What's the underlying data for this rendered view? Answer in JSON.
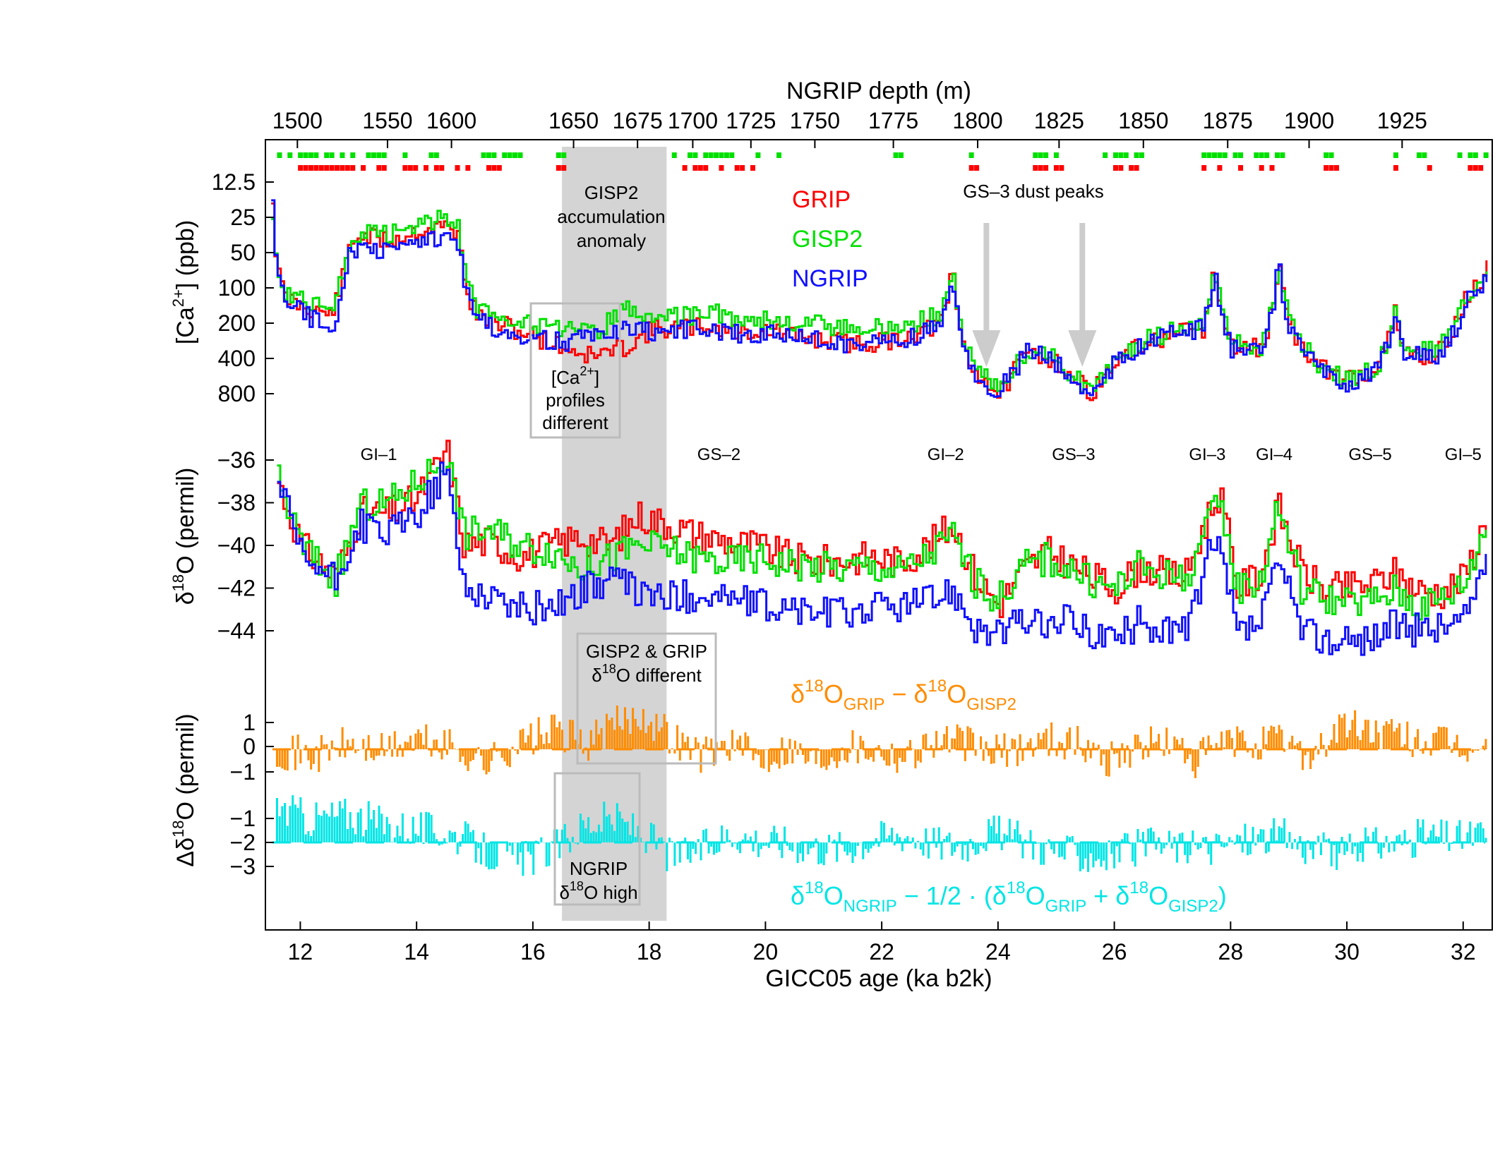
{
  "chart_data": {
    "type": "line",
    "title": "",
    "xlabel": "GICC05 age (ka b2k)",
    "xlim": [
      11.4,
      32.5
    ],
    "x_ticks": [
      12,
      14,
      16,
      18,
      20,
      22,
      24,
      26,
      28,
      30,
      32
    ],
    "top_axis": {
      "label": "NGRIP depth (m)",
      "ticks": [
        {
          "depth": 1500,
          "age": 11.95
        },
        {
          "depth": 1550,
          "age": 13.5
        },
        {
          "depth": 1600,
          "age": 14.6
        },
        {
          "depth": 1650,
          "age": 16.7
        },
        {
          "depth": 1675,
          "age": 17.8
        },
        {
          "depth": 1700,
          "age": 18.75
        },
        {
          "depth": 1725,
          "age": 19.75
        },
        {
          "depth": 1750,
          "age": 20.85
        },
        {
          "depth": 1775,
          "age": 22.2
        },
        {
          "depth": 1800,
          "age": 23.65
        },
        {
          "depth": 1825,
          "age": 25.05
        },
        {
          "depth": 1850,
          "age": 26.5
        },
        {
          "depth": 1875,
          "age": 27.95
        },
        {
          "depth": 1900,
          "age": 29.35
        },
        {
          "depth": 1925,
          "age": 30.95
        }
      ]
    },
    "panels": [
      {
        "id": "calcium",
        "ylabel": "[Ca2+] (ppb)",
        "y_scale": "log (inverted)",
        "y_ticks": [
          "12.5",
          "25",
          "50",
          "100",
          "200",
          "400",
          "800"
        ],
        "series": [
          {
            "name": "GRIP",
            "color": "#ff0000",
            "x": [
              11.5,
              11.7,
              12.0,
              12.5,
              12.8,
              13.0,
              13.5,
              14.0,
              14.5,
              14.7,
              15.0,
              15.5,
              16.0,
              16.5,
              17.0,
              17.5,
              18.0,
              18.5,
              19.0,
              19.5,
              20.0,
              20.5,
              21.0,
              21.5,
              22.0,
              22.5,
              23.0,
              23.2,
              23.5,
              23.8,
              24.0,
              24.2,
              24.5,
              25.0,
              25.3,
              25.6,
              26.0,
              26.5,
              27.0,
              27.5,
              27.7,
              28.0,
              28.5,
              28.8,
              29.0,
              29.5,
              30.0,
              30.5,
              30.8,
              31.0,
              31.5,
              32.0,
              32.4
            ],
            "y": [
              18,
              120,
              140,
              170,
              45,
              35,
              40,
              32,
              30,
              34,
              170,
              210,
              260,
              320,
              380,
              330,
              230,
              220,
              210,
              240,
              230,
              260,
              280,
              300,
              290,
              250,
              200,
              60,
              450,
              640,
              820,
              560,
              350,
              420,
              620,
              760,
              420,
              300,
              250,
              230,
              60,
              320,
              330,
              50,
              200,
              480,
              600,
              480,
              160,
              370,
              380,
              130,
              70
            ]
          },
          {
            "name": "GISP2",
            "color": "#00e000",
            "x": [
              11.5,
              11.7,
              12.0,
              12.5,
              12.8,
              13.0,
              13.5,
              14.0,
              14.5,
              14.7,
              15.0,
              15.5,
              16.0,
              16.5,
              17.0,
              17.5,
              18.0,
              18.5,
              19.0,
              19.5,
              20.0,
              20.5,
              21.0,
              21.5,
              22.0,
              22.5,
              23.0,
              23.2,
              23.5,
              23.8,
              24.0,
              24.2,
              24.5,
              25.0,
              25.3,
              25.6,
              26.0,
              26.5,
              27.0,
              27.5,
              27.7,
              28.0,
              28.5,
              28.8,
              29.0,
              29.5,
              30.0,
              30.5,
              30.8,
              31.0,
              31.5,
              32.0,
              32.4
            ],
            "y": [
              22,
              110,
              120,
              150,
              45,
              33,
              35,
              28,
              25,
              30,
              150,
              170,
              210,
              230,
              250,
              150,
              170,
              180,
              160,
              180,
              190,
              200,
              210,
              230,
              220,
              200,
              170,
              55,
              380,
              620,
              700,
              520,
              330,
              410,
              600,
              740,
              380,
              280,
              230,
              200,
              55,
              300,
              320,
              48,
              190,
              450,
              620,
              460,
              150,
              340,
              350,
              120,
              60
            ]
          },
          {
            "name": "NGRIP",
            "color": "#1010ff",
            "x": [
              11.5,
              11.7,
              12.0,
              12.5,
              12.8,
              13.0,
              13.5,
              14.0,
              14.5,
              14.7,
              15.0,
              15.5,
              16.0,
              16.5,
              17.0,
              17.5,
              18.0,
              18.5,
              19.0,
              19.5,
              20.0,
              20.5,
              21.0,
              21.5,
              22.0,
              22.5,
              23.0,
              23.2,
              23.5,
              23.8,
              24.0,
              24.2,
              24.5,
              25.0,
              25.3,
              25.6,
              26.0,
              26.5,
              27.0,
              27.5,
              27.7,
              28.0,
              28.5,
              28.8,
              29.0,
              29.5,
              30.0,
              30.5,
              30.8,
              31.0,
              31.5,
              32.0,
              32.4
            ],
            "y": [
              20,
              130,
              160,
              220,
              55,
              45,
              50,
              40,
              35,
              40,
              190,
              230,
              270,
              290,
              260,
              230,
              240,
              230,
              220,
              250,
              240,
              260,
              280,
              300,
              290,
              260,
              210,
              70,
              470,
              670,
              760,
              540,
              330,
              440,
              650,
              780,
              420,
              310,
              240,
              220,
              65,
              340,
              350,
              55,
              210,
              500,
              640,
              500,
              170,
              380,
              390,
              140,
              75
            ]
          }
        ],
        "markers": {
          "colors": [
            "#00e000",
            "#ff0000"
          ]
        }
      },
      {
        "id": "d18O",
        "ylabel": "δ18O (permil)",
        "y_ticks": [
          -36,
          -38,
          -40,
          -42,
          -44
        ],
        "ylim": [
          -45.5,
          -35
        ],
        "series": [
          {
            "name": "GRIP",
            "color": "#ff0000",
            "x": [
              11.6,
              12.0,
              12.6,
              13.0,
              13.5,
              14.0,
              14.5,
              14.8,
              15.2,
              15.8,
              16.3,
              16.8,
              17.3,
              17.8,
              18.3,
              18.8,
              19.3,
              19.8,
              20.3,
              20.8,
              21.3,
              21.8,
              22.3,
              22.8,
              23.2,
              23.6,
              24.0,
              24.4,
              24.8,
              25.2,
              25.6,
              26.0,
              26.4,
              26.8,
              27.2,
              27.6,
              27.8,
              28.1,
              28.5,
              28.8,
              29.2,
              29.6,
              30.0,
              30.4,
              30.8,
              31.2,
              31.6,
              32.0,
              32.4
            ],
            "y": [
              -37,
              -40,
              -41.5,
              -38.5,
              -38.5,
              -37.8,
              -35.5,
              -40,
              -39.8,
              -40.5,
              -40,
              -39.6,
              -40,
              -38.6,
              -39,
              -39.5,
              -39.8,
              -40,
              -40.5,
              -40.8,
              -40.7,
              -40.5,
              -40.8,
              -40,
              -39,
              -41.5,
              -42.8,
              -41.2,
              -40.3,
              -40.8,
              -41.5,
              -42,
              -41,
              -41.3,
              -41.5,
              -38.6,
              -37.5,
              -42,
              -41.3,
              -38.2,
              -41.2,
              -42.1,
              -42,
              -41.8,
              -41.3,
              -42.1,
              -42.2,
              -41.5,
              -38.6
            ]
          },
          {
            "name": "GISP2",
            "color": "#00e000",
            "x": [
              11.6,
              12.0,
              12.6,
              13.0,
              13.5,
              14.0,
              14.5,
              14.8,
              15.2,
              15.8,
              16.3,
              16.8,
              17.3,
              17.8,
              18.3,
              18.8,
              19.3,
              19.8,
              20.3,
              20.8,
              21.3,
              21.8,
              22.3,
              22.8,
              23.2,
              23.6,
              24.0,
              24.4,
              24.8,
              25.2,
              25.6,
              26.0,
              26.4,
              26.8,
              27.2,
              27.6,
              27.8,
              28.1,
              28.5,
              28.8,
              29.2,
              29.6,
              30.0,
              30.4,
              30.8,
              31.2,
              31.6,
              32.0,
              32.4
            ],
            "y": [
              -37,
              -40,
              -41.6,
              -38.2,
              -38,
              -37,
              -35.8,
              -39.5,
              -39.2,
              -40,
              -40.2,
              -41,
              -40.6,
              -40,
              -40.2,
              -40.6,
              -40.8,
              -40.6,
              -40.8,
              -41,
              -41.1,
              -41,
              -41.2,
              -40.4,
              -39.5,
              -41.8,
              -42.5,
              -41,
              -40.6,
              -41,
              -41.8,
              -42,
              -41,
              -41.3,
              -41.6,
              -39,
              -38,
              -42,
              -41.6,
              -38,
              -42,
              -42.4,
              -42.8,
              -42.6,
              -42.1,
              -42.8,
              -42.5,
              -41.8,
              -38.8
            ]
          },
          {
            "name": "NGRIP",
            "color": "#1010ff",
            "x": [
              11.6,
              12.0,
              12.6,
              13.0,
              13.5,
              14.0,
              14.5,
              14.8,
              15.2,
              15.8,
              16.3,
              16.8,
              17.3,
              17.8,
              18.3,
              18.8,
              19.3,
              19.8,
              20.3,
              20.8,
              21.3,
              21.8,
              22.3,
              22.8,
              23.2,
              23.6,
              24.0,
              24.4,
              24.8,
              25.2,
              25.6,
              26.0,
              26.4,
              26.8,
              27.2,
              27.6,
              27.8,
              28.1,
              28.5,
              28.8,
              29.2,
              29.6,
              30.0,
              30.4,
              30.8,
              31.2,
              31.6,
              32.0,
              32.4
            ],
            "y": [
              -37,
              -40.6,
              -41.7,
              -39,
              -39.5,
              -38.5,
              -36.5,
              -42,
              -42.3,
              -43,
              -42.8,
              -42.2,
              -41.5,
              -42.2,
              -42.5,
              -42.3,
              -42.4,
              -42.8,
              -43,
              -43.1,
              -43.2,
              -42.9,
              -42.8,
              -42.6,
              -42,
              -43.8,
              -44.2,
              -43.5,
              -43.8,
              -43.5,
              -44,
              -44.5,
              -43.6,
              -43.9,
              -44.1,
              -40.5,
              -40.3,
              -44.2,
              -43.6,
              -40.8,
              -44,
              -44.4,
              -44.6,
              -44.3,
              -43.7,
              -44,
              -43.8,
              -43.5,
              -40.2
            ]
          }
        ]
      },
      {
        "id": "delta",
        "ylabel": "Δδ18O (permil)",
        "y_ticks": [
          "1",
          "0",
          "−1",
          "−1",
          "−2",
          "−3"
        ],
        "series": [
          {
            "name": "δ18O_GRIP − δ18O_GISP2",
            "color": "#ff8c00",
            "baseline": 0,
            "x": [
              11.6,
              12.2,
              12.8,
              13.4,
              14.0,
              14.6,
              15.2,
              15.8,
              16.4,
              16.9,
              17.4,
              17.9,
              18.4,
              18.9,
              19.4,
              19.9,
              20.4,
              20.9,
              21.4,
              21.9,
              22.4,
              22.9,
              23.4,
              23.9,
              24.4,
              24.9,
              25.4,
              25.9,
              26.4,
              26.9,
              27.4,
              27.9,
              28.4,
              28.9,
              29.4,
              29.9,
              30.4,
              30.9,
              31.4,
              31.9,
              32.4
            ],
            "y": [
              0,
              -0.3,
              0.2,
              -0.1,
              0.4,
              0.1,
              -0.6,
              0.3,
              0.8,
              0.2,
              1.0,
              1.5,
              0.5,
              -0.2,
              0.3,
              -0.4,
              0.1,
              -0.5,
              0.2,
              0.0,
              -0.3,
              0.4,
              0.3,
              -0.2,
              0.1,
              0.5,
              0.2,
              -0.4,
              0.1,
              0.3,
              -0.5,
              0.3,
              0.2,
              0.4,
              -0.3,
              1.0,
              0.8,
              0.5,
              0.3,
              0.1,
              -0.2
            ]
          },
          {
            "name": "δ18O_NGRIP − 1/2 · (δ18O_GRIP + δ18O_GISP2)",
            "color": "#00e5e5",
            "baseline": -2,
            "x": [
              11.6,
              12.2,
              12.8,
              13.4,
              14.0,
              14.6,
              15.2,
              15.8,
              16.4,
              16.9,
              17.4,
              17.9,
              18.4,
              18.9,
              19.4,
              19.9,
              20.4,
              20.9,
              21.4,
              21.9,
              22.4,
              22.9,
              23.4,
              23.9,
              24.4,
              24.9,
              25.4,
              25.9,
              26.4,
              26.9,
              27.4,
              27.9,
              28.4,
              28.9,
              29.4,
              29.9,
              30.4,
              30.9,
              31.4,
              31.9,
              32.4
            ],
            "y": [
              -0.5,
              -1.0,
              -0.8,
              -1.2,
              -1.4,
              -1.6,
              -2.4,
              -2.8,
              -2.2,
              -1.2,
              -1.0,
              -1.6,
              -2.6,
              -2.3,
              -1.6,
              -1.9,
              -2.0,
              -2.2,
              -2.2,
              -1.8,
              -1.6,
              -2.0,
              -2.1,
              -1.5,
              -1.9,
              -2.3,
              -2.5,
              -2.6,
              -2.2,
              -2.1,
              -2.3,
              -2.1,
              -1.8,
              -1.7,
              -2.3,
              -2.5,
              -2.1,
              -2.0,
              -1.7,
              -1.8,
              -1.6
            ]
          }
        ]
      }
    ],
    "events": [
      "GI–1",
      "GS–2",
      "GI–2",
      "GS–3",
      "GI–3",
      "GI–4",
      "GS–5",
      "GI–5"
    ],
    "shaded_region": {
      "x": [
        16.5,
        18.3
      ],
      "color": "#cccccc"
    },
    "annotations": {
      "accumulation": [
        "GISP2",
        "accumulation",
        "anomaly"
      ],
      "dust": "GS–3 dust peaks",
      "ca_diff": [
        "profiles",
        "different"
      ],
      "gisp_grip": "GISP2 & GRIP",
      "d18o_different": "different",
      "ngrip_high": [
        "NGRIP",
        "high"
      ]
    },
    "legend": [
      "GRIP",
      "GISP2",
      "NGRIP"
    ]
  }
}
